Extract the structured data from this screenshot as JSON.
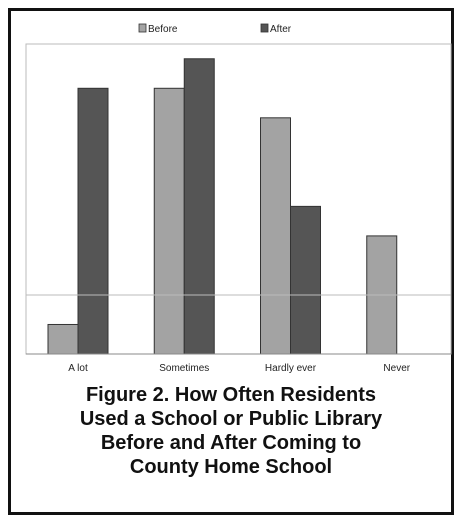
{
  "caption_lines": [
    "Figure 2. How Often Residents",
    "Used a School or Public Library",
    "Before and After Coming to",
    "County Home School"
  ],
  "chart_data": {
    "type": "bar",
    "title": "Figure 2. How Often Residents Used a School or Public Library Before and After Coming to County Home School",
    "categories": [
      "A lot",
      "Sometimes",
      "Hardly ever",
      "Never"
    ],
    "series": [
      {
        "name": "Before",
        "values": [
          1,
          9,
          8,
          4
        ],
        "color": "#a3a3a3"
      },
      {
        "name": "After",
        "values": [
          9,
          10,
          5,
          0
        ],
        "color": "#555555"
      }
    ],
    "ylim": [
      0,
      10.5
    ],
    "reference_line": 2,
    "legend_position": "top",
    "grid": false
  }
}
